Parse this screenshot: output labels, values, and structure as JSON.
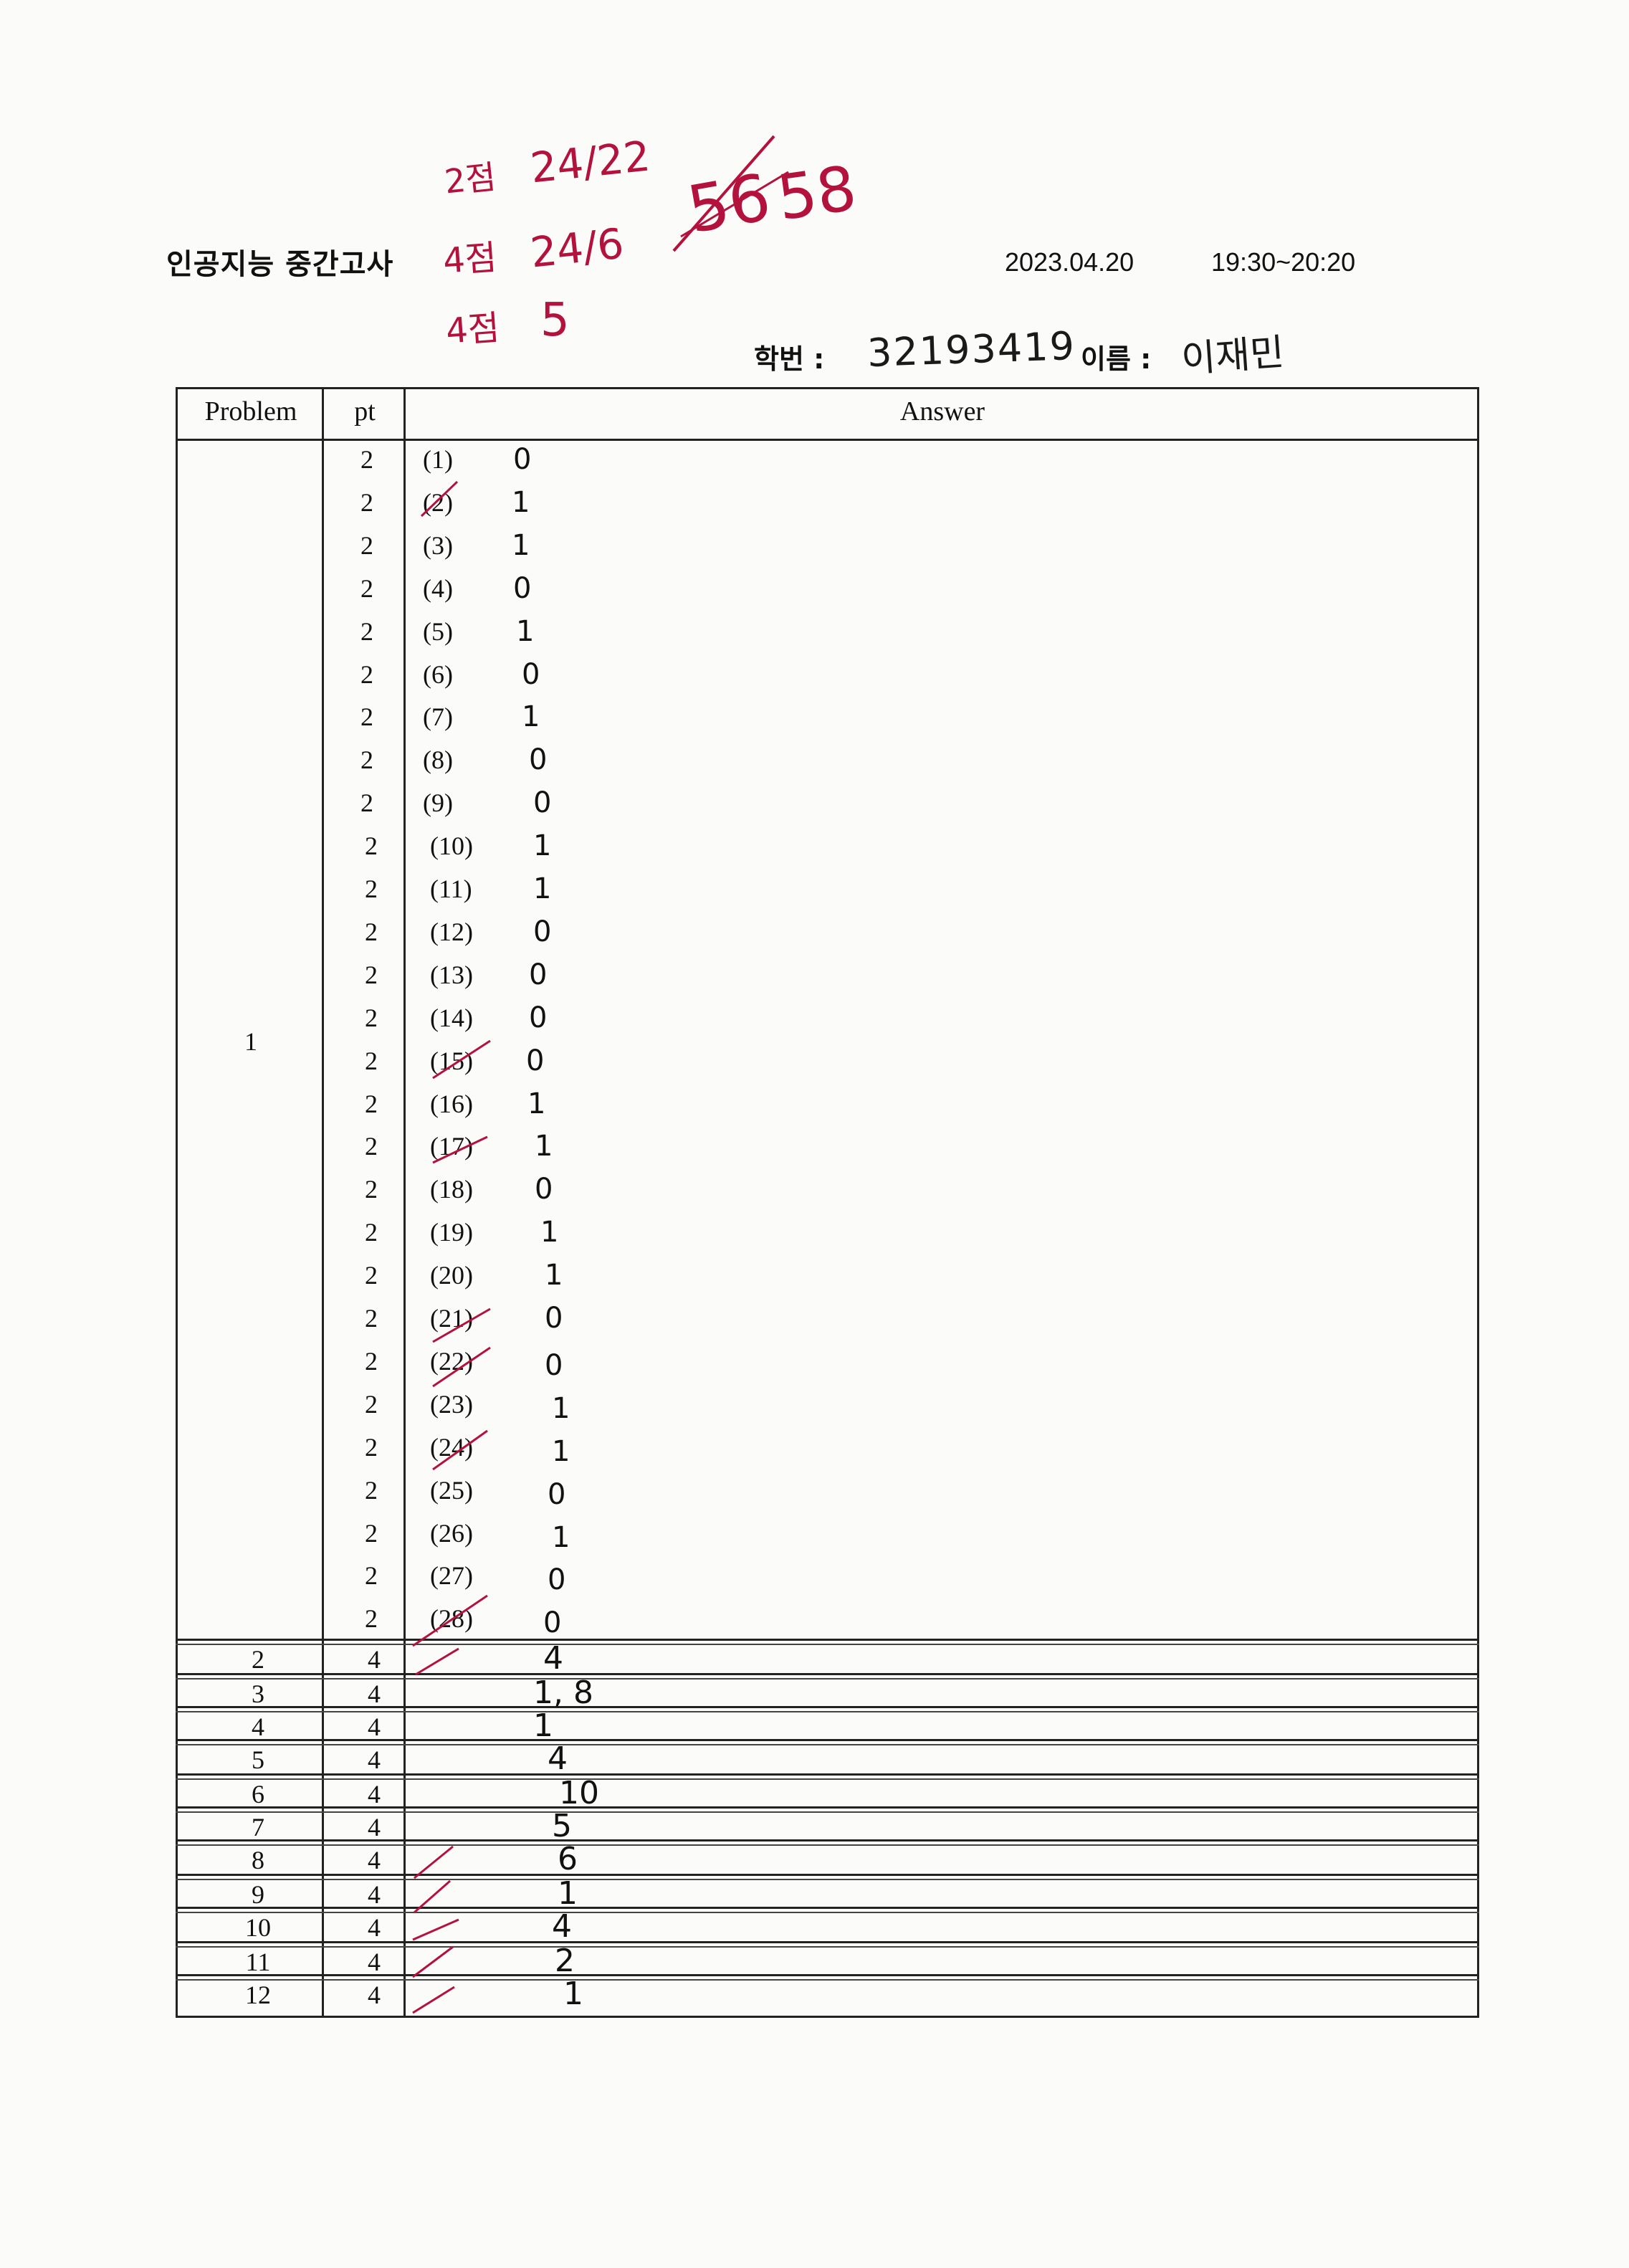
{
  "header": {
    "title": "인공지능 중간고사",
    "date": "2023.04.20",
    "time": "19:30~20:20",
    "student_id_label": "학번 :",
    "student_id": "32193419",
    "name_label": "이름 :",
    "name": "이재민"
  },
  "grading_notes": {
    "line1_label": "2점",
    "line1_value": "24/22",
    "line2_label": "4점",
    "line2_value": "24/6",
    "line3_label": "4점",
    "line3_value": "5",
    "total_struck": "56",
    "total": "58"
  },
  "table": {
    "col_problem": "Problem",
    "col_pt": "pt",
    "col_answer": "Answer",
    "problem1": {
      "number": "1",
      "items": [
        {
          "pt": "2",
          "label": "(1)",
          "answer": "0"
        },
        {
          "pt": "2",
          "label": "(2)",
          "answer": "1"
        },
        {
          "pt": "2",
          "label": "(3)",
          "answer": "1"
        },
        {
          "pt": "2",
          "label": "(4)",
          "answer": "0"
        },
        {
          "pt": "2",
          "label": "(5)",
          "answer": "1"
        },
        {
          "pt": "2",
          "label": "(6)",
          "answer": "0"
        },
        {
          "pt": "2",
          "label": "(7)",
          "answer": "1"
        },
        {
          "pt": "2",
          "label": "(8)",
          "answer": "0"
        },
        {
          "pt": "2",
          "label": "(9)",
          "answer": "0"
        },
        {
          "pt": "2",
          "label": "(10)",
          "answer": "1"
        },
        {
          "pt": "2",
          "label": "(11)",
          "answer": "1"
        },
        {
          "pt": "2",
          "label": "(12)",
          "answer": "0"
        },
        {
          "pt": "2",
          "label": "(13)",
          "answer": "0"
        },
        {
          "pt": "2",
          "label": "(14)",
          "answer": "0"
        },
        {
          "pt": "2",
          "label": "(15)",
          "answer": "0"
        },
        {
          "pt": "2",
          "label": "(16)",
          "answer": "1"
        },
        {
          "pt": "2",
          "label": "(17)",
          "answer": "1"
        },
        {
          "pt": "2",
          "label": "(18)",
          "answer": "0"
        },
        {
          "pt": "2",
          "label": "(19)",
          "answer": "1"
        },
        {
          "pt": "2",
          "label": "(20)",
          "answer": "1"
        },
        {
          "pt": "2",
          "label": "(21)",
          "answer": "0"
        },
        {
          "pt": "2",
          "label": "(22)",
          "answer": "0"
        },
        {
          "pt": "2",
          "label": "(23)",
          "answer": "1"
        },
        {
          "pt": "2",
          "label": "(24)",
          "answer": "1"
        },
        {
          "pt": "2",
          "label": "(25)",
          "answer": "0"
        },
        {
          "pt": "2",
          "label": "(26)",
          "answer": "1"
        },
        {
          "pt": "2",
          "label": "(27)",
          "answer": "0"
        },
        {
          "pt": "2",
          "label": "(28)",
          "answer": "0"
        }
      ]
    },
    "rows": [
      {
        "problem": "2",
        "pt": "4",
        "answer": "4"
      },
      {
        "problem": "3",
        "pt": "4",
        "answer": "1, 8"
      },
      {
        "problem": "4",
        "pt": "4",
        "answer": "1"
      },
      {
        "problem": "5",
        "pt": "4",
        "answer": "4"
      },
      {
        "problem": "6",
        "pt": "4",
        "answer": "10"
      },
      {
        "problem": "7",
        "pt": "4",
        "answer": "5"
      },
      {
        "problem": "8",
        "pt": "4",
        "answer": "6"
      },
      {
        "problem": "9",
        "pt": "4",
        "answer": "1"
      },
      {
        "problem": "10",
        "pt": "4",
        "answer": "4"
      },
      {
        "problem": "11",
        "pt": "4",
        "answer": "2"
      },
      {
        "problem": "12",
        "pt": "4",
        "answer": "1"
      }
    ]
  },
  "colors": {
    "grading_red": "#b3123d",
    "ink": "#111111"
  }
}
